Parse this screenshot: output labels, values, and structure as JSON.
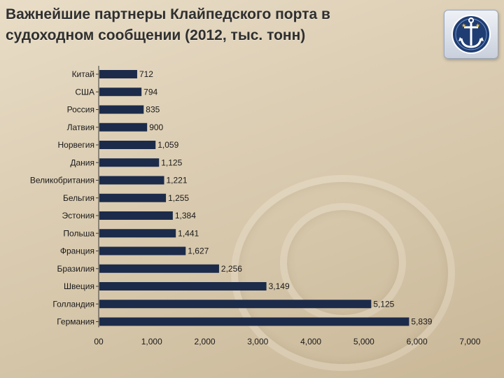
{
  "header": {
    "title_line1": "Важнейшие партнеры Клайпедского порта в",
    "title_line2": "судоходном сообщении (2012, тыс. тонн)"
  },
  "logo": {
    "icon": "anchor-emblem-icon"
  },
  "colors": {
    "bar": "#1c2b4a",
    "text": "#1a1a1a"
  },
  "chart_data": {
    "type": "bar",
    "orientation": "horizontal",
    "title": "Важнейшие партнеры Клайпедского порта в судоходном сообщении (2012, тыс. тонн)",
    "categories": [
      "Китай",
      "США",
      "Россия",
      "Латвия",
      "Норвегия",
      "Дания",
      "Великобритания",
      "Бельгия",
      "Эстония",
      "Польша",
      "Франция",
      "Бразилия",
      "Швеция",
      "Голландия",
      "Германия"
    ],
    "values": [
      712,
      794,
      835,
      900,
      1059,
      1125,
      1221,
      1255,
      1384,
      1441,
      1627,
      2256,
      3149,
      5125,
      5839
    ],
    "value_labels": [
      "712",
      "794",
      "835",
      "900",
      "1,059",
      "1,125",
      "1,221",
      "1,255",
      "1,384",
      "1,441",
      "1,627",
      "2,256",
      "3,149",
      "5,125",
      "5,839"
    ],
    "xlim": [
      0,
      7000
    ],
    "xticks": [
      0,
      1000,
      2000,
      3000,
      4000,
      5000,
      6000,
      7000
    ],
    "xtick_labels": [
      "00",
      "1,000",
      "2,000",
      "3,000",
      "4,000",
      "5,000",
      "6,000",
      "7,000"
    ],
    "xlabel": "",
    "ylabel": "",
    "grid": false,
    "legend": "none"
  }
}
